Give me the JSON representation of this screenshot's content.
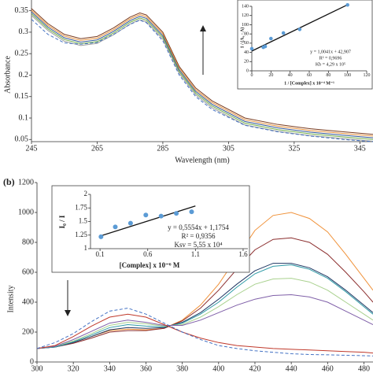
{
  "chart_data": [
    {
      "type": "line",
      "x_label": "Wavelength (nm)",
      "y_label": "Absorbance",
      "x": [
        245,
        250,
        255,
        260,
        265,
        270,
        275,
        278,
        280,
        285,
        290,
        295,
        300,
        310,
        320,
        330,
        340,
        349
      ],
      "series": [
        {
          "color": "#7a3b1e",
          "values": [
            0.355,
            0.32,
            0.295,
            0.285,
            0.29,
            0.31,
            0.335,
            0.345,
            0.34,
            0.3,
            0.22,
            0.17,
            0.14,
            0.1,
            0.085,
            0.075,
            0.068,
            0.062
          ]
        },
        {
          "color": "#e8913a",
          "values": [
            0.351,
            0.316,
            0.291,
            0.281,
            0.286,
            0.306,
            0.331,
            0.341,
            0.336,
            0.296,
            0.216,
            0.166,
            0.136,
            0.096,
            0.081,
            0.071,
            0.064,
            0.058
          ]
        },
        {
          "color": "#2f5597",
          "values": [
            0.347,
            0.312,
            0.287,
            0.277,
            0.282,
            0.302,
            0.327,
            0.337,
            0.332,
            0.292,
            0.212,
            0.162,
            0.132,
            0.092,
            0.077,
            0.067,
            0.06,
            0.054
          ]
        },
        {
          "color": "#70ad47",
          "values": [
            0.343,
            0.308,
            0.283,
            0.273,
            0.278,
            0.298,
            0.323,
            0.333,
            0.328,
            0.288,
            0.208,
            0.158,
            0.128,
            0.088,
            0.073,
            0.063,
            0.056,
            0.05
          ]
        },
        {
          "color": "#9e9e9e",
          "values": [
            0.339,
            0.304,
            0.279,
            0.269,
            0.274,
            0.294,
            0.319,
            0.329,
            0.324,
            0.284,
            0.204,
            0.154,
            0.124,
            0.084,
            0.069,
            0.059,
            0.052,
            0.046
          ]
        },
        {
          "color": "#4472c4",
          "style": "dashed",
          "values": [
            0.33,
            0.295,
            0.275,
            0.272,
            0.276,
            0.295,
            0.318,
            0.328,
            0.322,
            0.28,
            0.2,
            0.15,
            0.12,
            0.083,
            0.068,
            0.058,
            0.05,
            0.045
          ]
        }
      ],
      "xlim": [
        245,
        349
      ],
      "xticks": [
        245,
        265,
        285,
        305,
        325,
        345
      ],
      "ylim": [
        0.045,
        0.375
      ],
      "yticks": [
        0.05,
        0.1,
        0.15,
        0.2,
        0.25,
        0.3,
        0.35
      ]
    },
    {
      "type": "scatter",
      "x_label": "1 / [Complex] x 10⁻⁴ M⁻¹",
      "y_label": "1 / (A₀ - A)",
      "color": "#5b9bd5",
      "x": [
        0,
        12,
        14,
        20,
        33,
        50,
        100
      ],
      "values": [
        48,
        51,
        53,
        70,
        82,
        90,
        143
      ],
      "fit": {
        "x": [
          0,
          100
        ],
        "y": [
          42.907,
          143.317
        ]
      },
      "annotations": [
        "y = 1,0041x + 42,907",
        "R² = 0,9696",
        "Kb = 4,29 x 10⁵"
      ],
      "xlim": [
        0,
        120
      ],
      "xticks": [
        0,
        20,
        40,
        60,
        80,
        100,
        120
      ],
      "ylim": [
        0,
        140
      ],
      "yticks": [
        0,
        20,
        40,
        60,
        80,
        100,
        120,
        140
      ]
    },
    {
      "type": "line",
      "panel_label": "(b)",
      "y_label": "Intensity",
      "x": [
        300,
        310,
        320,
        330,
        340,
        350,
        360,
        370,
        380,
        390,
        400,
        410,
        420,
        430,
        440,
        450,
        460,
        470,
        480,
        485
      ],
      "series": [
        {
          "color": "#f0923a",
          "values": [
            90,
            100,
            130,
            170,
            210,
            220,
            215,
            225,
            280,
            380,
            520,
            700,
            880,
            980,
            1000,
            960,
            870,
            720,
            560,
            480
          ]
        },
        {
          "color": "#8b2d2d",
          "values": [
            90,
            100,
            125,
            160,
            200,
            210,
            210,
            225,
            275,
            360,
            480,
            620,
            750,
            820,
            830,
            800,
            720,
            600,
            470,
            400
          ]
        },
        {
          "color": "#203864",
          "values": [
            90,
            100,
            130,
            170,
            215,
            230,
            225,
            230,
            265,
            330,
            420,
            520,
            610,
            660,
            660,
            630,
            570,
            480,
            380,
            330
          ]
        },
        {
          "color": "#2e9aa6",
          "values": [
            90,
            100,
            135,
            180,
            230,
            250,
            240,
            235,
            260,
            320,
            400,
            500,
            590,
            640,
            650,
            620,
            560,
            470,
            370,
            320
          ]
        },
        {
          "color": "#a9d18e",
          "values": [
            90,
            105,
            140,
            190,
            245,
            265,
            255,
            240,
            250,
            300,
            370,
            450,
            520,
            555,
            560,
            535,
            480,
            400,
            320,
            280
          ]
        },
        {
          "color": "#7f5fa8",
          "values": [
            90,
            105,
            150,
            205,
            260,
            280,
            265,
            245,
            245,
            280,
            330,
            380,
            420,
            445,
            450,
            435,
            400,
            340,
            280,
            250
          ]
        },
        {
          "color": "#c0392b",
          "values": [
            90,
            110,
            170,
            240,
            300,
            320,
            300,
            250,
            200,
            160,
            130,
            110,
            100,
            90,
            85,
            80,
            75,
            70,
            65,
            60
          ]
        },
        {
          "color": "#4472c4",
          "style": "dashed",
          "values": [
            90,
            130,
            190,
            270,
            340,
            360,
            320,
            260,
            200,
            150,
            110,
            90,
            75,
            65,
            55,
            50,
            48,
            45,
            42,
            40
          ]
        }
      ],
      "xlim": [
        300,
        485
      ],
      "xticks": [
        300,
        320,
        340,
        360,
        380,
        400,
        420,
        440,
        460,
        480
      ],
      "ylim": [
        0,
        1200
      ],
      "yticks": [
        0,
        200,
        400,
        600,
        800,
        1000,
        1200
      ]
    },
    {
      "type": "scatter",
      "x_label": "[Complex] x 10⁻⁶ M",
      "y_label": "I₀ / I",
      "color": "#5b9bd5",
      "x": [
        0.11,
        0.26,
        0.42,
        0.58,
        0.74,
        0.9,
        1.06
      ],
      "values": [
        1.22,
        1.4,
        1.47,
        1.62,
        1.6,
        1.65,
        1.68
      ],
      "fit": {
        "x": [
          0.1,
          1.1
        ],
        "y": [
          1.231,
          1.786
        ]
      },
      "annotations": [
        "y = 0,5554x + 1,1754",
        "R² = 0,9356",
        "Ksv = 5,55 x 10⁴"
      ],
      "xlim": [
        0,
        1.65
      ],
      "xticks": [
        0.1,
        0.6,
        1.1,
        1.6
      ],
      "ylim": [
        1,
        2
      ],
      "yticks": [
        1,
        1.25,
        1.5,
        1.75,
        2
      ]
    }
  ]
}
